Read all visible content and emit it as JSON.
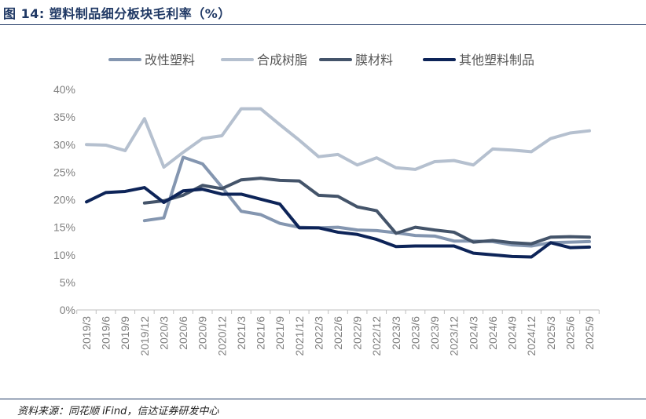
{
  "header": {
    "title": "图 14:  塑料制品细分板块毛利率（%）"
  },
  "footer": {
    "source": "资料来源：同花顺 iFind，信达证券研发中心"
  },
  "colors": {
    "改性塑料": "#8496b0",
    "合成树脂": "#b5c0cf",
    "膜材料": "#44546a",
    "其他塑料制品": "#0d2458",
    "axis": "#bfbfbf",
    "tick_text": "#7f7f7f"
  },
  "chart_data": {
    "type": "line",
    "title": "",
    "xlabel": "",
    "ylabel": "",
    "ylim": [
      0,
      40
    ],
    "y_ticks": [
      "0%",
      "5%",
      "10%",
      "15%",
      "20%",
      "25%",
      "30%",
      "35%",
      "40%"
    ],
    "y_tick_values": [
      0,
      5,
      10,
      15,
      20,
      25,
      30,
      35,
      40
    ],
    "grid": false,
    "legend_position": "top",
    "categories": [
      "2019/3",
      "2019/6",
      "2019/9",
      "2019/12",
      "2020/3",
      "2020/6",
      "2020/9",
      "2020/12",
      "2021/3",
      "2021/6",
      "2021/9",
      "2021/12",
      "2022/3",
      "2022/6",
      "2022/9",
      "2022/12",
      "2023/3",
      "2023/6",
      "2023/9",
      "2023/12",
      "2024/3",
      "2024/6",
      "2024/9",
      "2024/12",
      "2025/3",
      "2025/6",
      "2025/9"
    ],
    "series": [
      {
        "name": "改性塑料",
        "values": [
          null,
          null,
          null,
          16.2,
          16.7,
          27.7,
          26.5,
          22.3,
          17.9,
          17.3,
          15.7,
          15.0,
          14.9,
          15.0,
          14.5,
          14.4,
          14.0,
          13.5,
          13.4,
          12.5,
          12.5,
          12.4,
          11.8,
          11.6,
          12.2,
          12.3,
          12.4
        ]
      },
      {
        "name": "合成树脂",
        "values": [
          30.0,
          29.9,
          28.9,
          34.7,
          25.9,
          28.6,
          31.1,
          31.6,
          36.5,
          36.5,
          33.6,
          30.8,
          27.8,
          28.2,
          26.3,
          27.6,
          25.8,
          25.5,
          26.9,
          27.1,
          26.3,
          29.2,
          29.0,
          28.7,
          31.1,
          32.1,
          32.5
        ]
      },
      {
        "name": "膜材料",
        "values": [
          null,
          null,
          null,
          19.4,
          19.8,
          20.8,
          22.6,
          22.0,
          23.6,
          23.9,
          23.5,
          23.4,
          20.8,
          20.6,
          18.7,
          18.0,
          13.9,
          15.0,
          14.5,
          14.1,
          12.3,
          12.6,
          12.2,
          12.0,
          13.2,
          13.3,
          13.2
        ]
      },
      {
        "name": "其他塑料制品",
        "values": [
          19.6,
          21.3,
          21.5,
          22.2,
          19.5,
          21.6,
          21.9,
          21.0,
          21.0,
          20.1,
          19.2,
          14.9,
          14.9,
          14.1,
          13.7,
          12.8,
          11.5,
          11.6,
          11.6,
          11.6,
          10.3,
          10.0,
          9.7,
          9.6,
          12.2,
          11.3,
          11.4
        ]
      }
    ]
  }
}
